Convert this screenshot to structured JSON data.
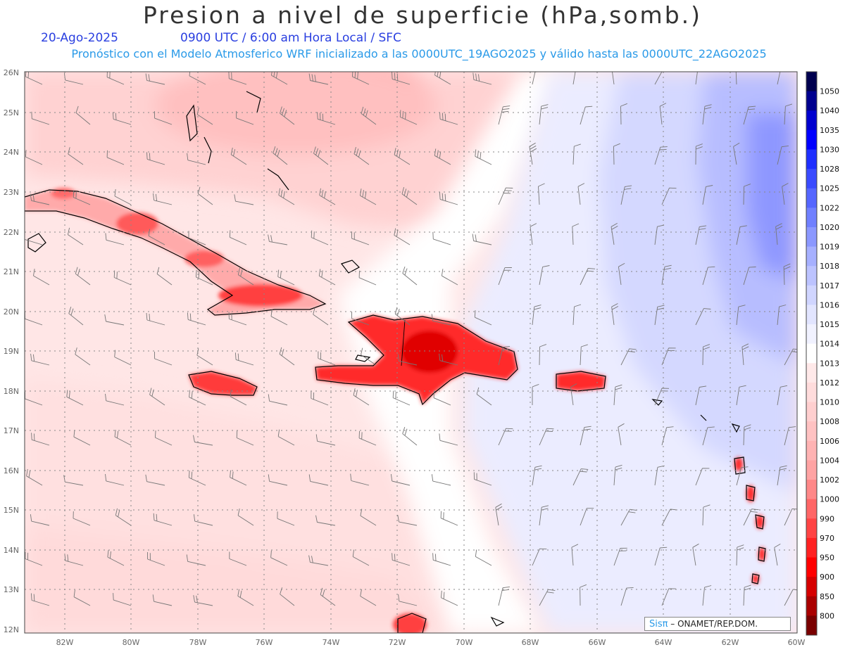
{
  "title": "Presion a nivel de superficie (hPa,somb.)",
  "date": "20-Ago-2025",
  "time_info": "0900 UTC / 6:00 am Hora Local / SFC",
  "model_info": "Pronóstico con el Modelo Atmosferico WRF inicializado a las 0000UTC_19AGO2025 y válido hasta las  0000UTC_22AGO2025",
  "lat_labels": [
    "26N",
    "25N",
    "24N",
    "23N",
    "22N",
    "21N",
    "20N",
    "19N",
    "18N",
    "17N",
    "16N",
    "15N",
    "14N",
    "13N",
    "12N"
  ],
  "lon_labels": [
    "82W",
    "80W",
    "78W",
    "76W",
    "74W",
    "72W",
    "70W",
    "68W",
    "66W",
    "64W",
    "62W",
    "60W"
  ],
  "colorbar": {
    "levels": [
      "1050",
      "1040",
      "1035",
      "1030",
      "1028",
      "1025",
      "1022",
      "1020",
      "1019",
      "1018",
      "1017",
      "1016",
      "1015",
      "1014",
      "1013",
      "1012",
      "1010",
      "1008",
      "1006",
      "1004",
      "1002",
      "1000",
      "990",
      "970",
      "950",
      "900",
      "850",
      "800"
    ],
    "colors": [
      "#00004f",
      "#00008f",
      "#0000cf",
      "#0000ff",
      "#1f2fff",
      "#3a4bff",
      "#5566ff",
      "#7080ff",
      "#8b98ff",
      "#a6b0ff",
      "#bcc3ff",
      "#d0d5ff",
      "#e2e5ff",
      "#f1f2ff",
      "#ffffff",
      "#ffe9e9",
      "#ffdcdc",
      "#ffcfcf",
      "#ffc2c2",
      "#ffb3b3",
      "#ffa3a3",
      "#ff8888",
      "#ff6666",
      "#ff4444",
      "#ff2222",
      "#ff0000",
      "#d60000",
      "#aa0000",
      "#7a0000"
    ]
  },
  "credit": {
    "sis": "Sisπ",
    "org": "– ONAMET/REP.DOM."
  }
}
